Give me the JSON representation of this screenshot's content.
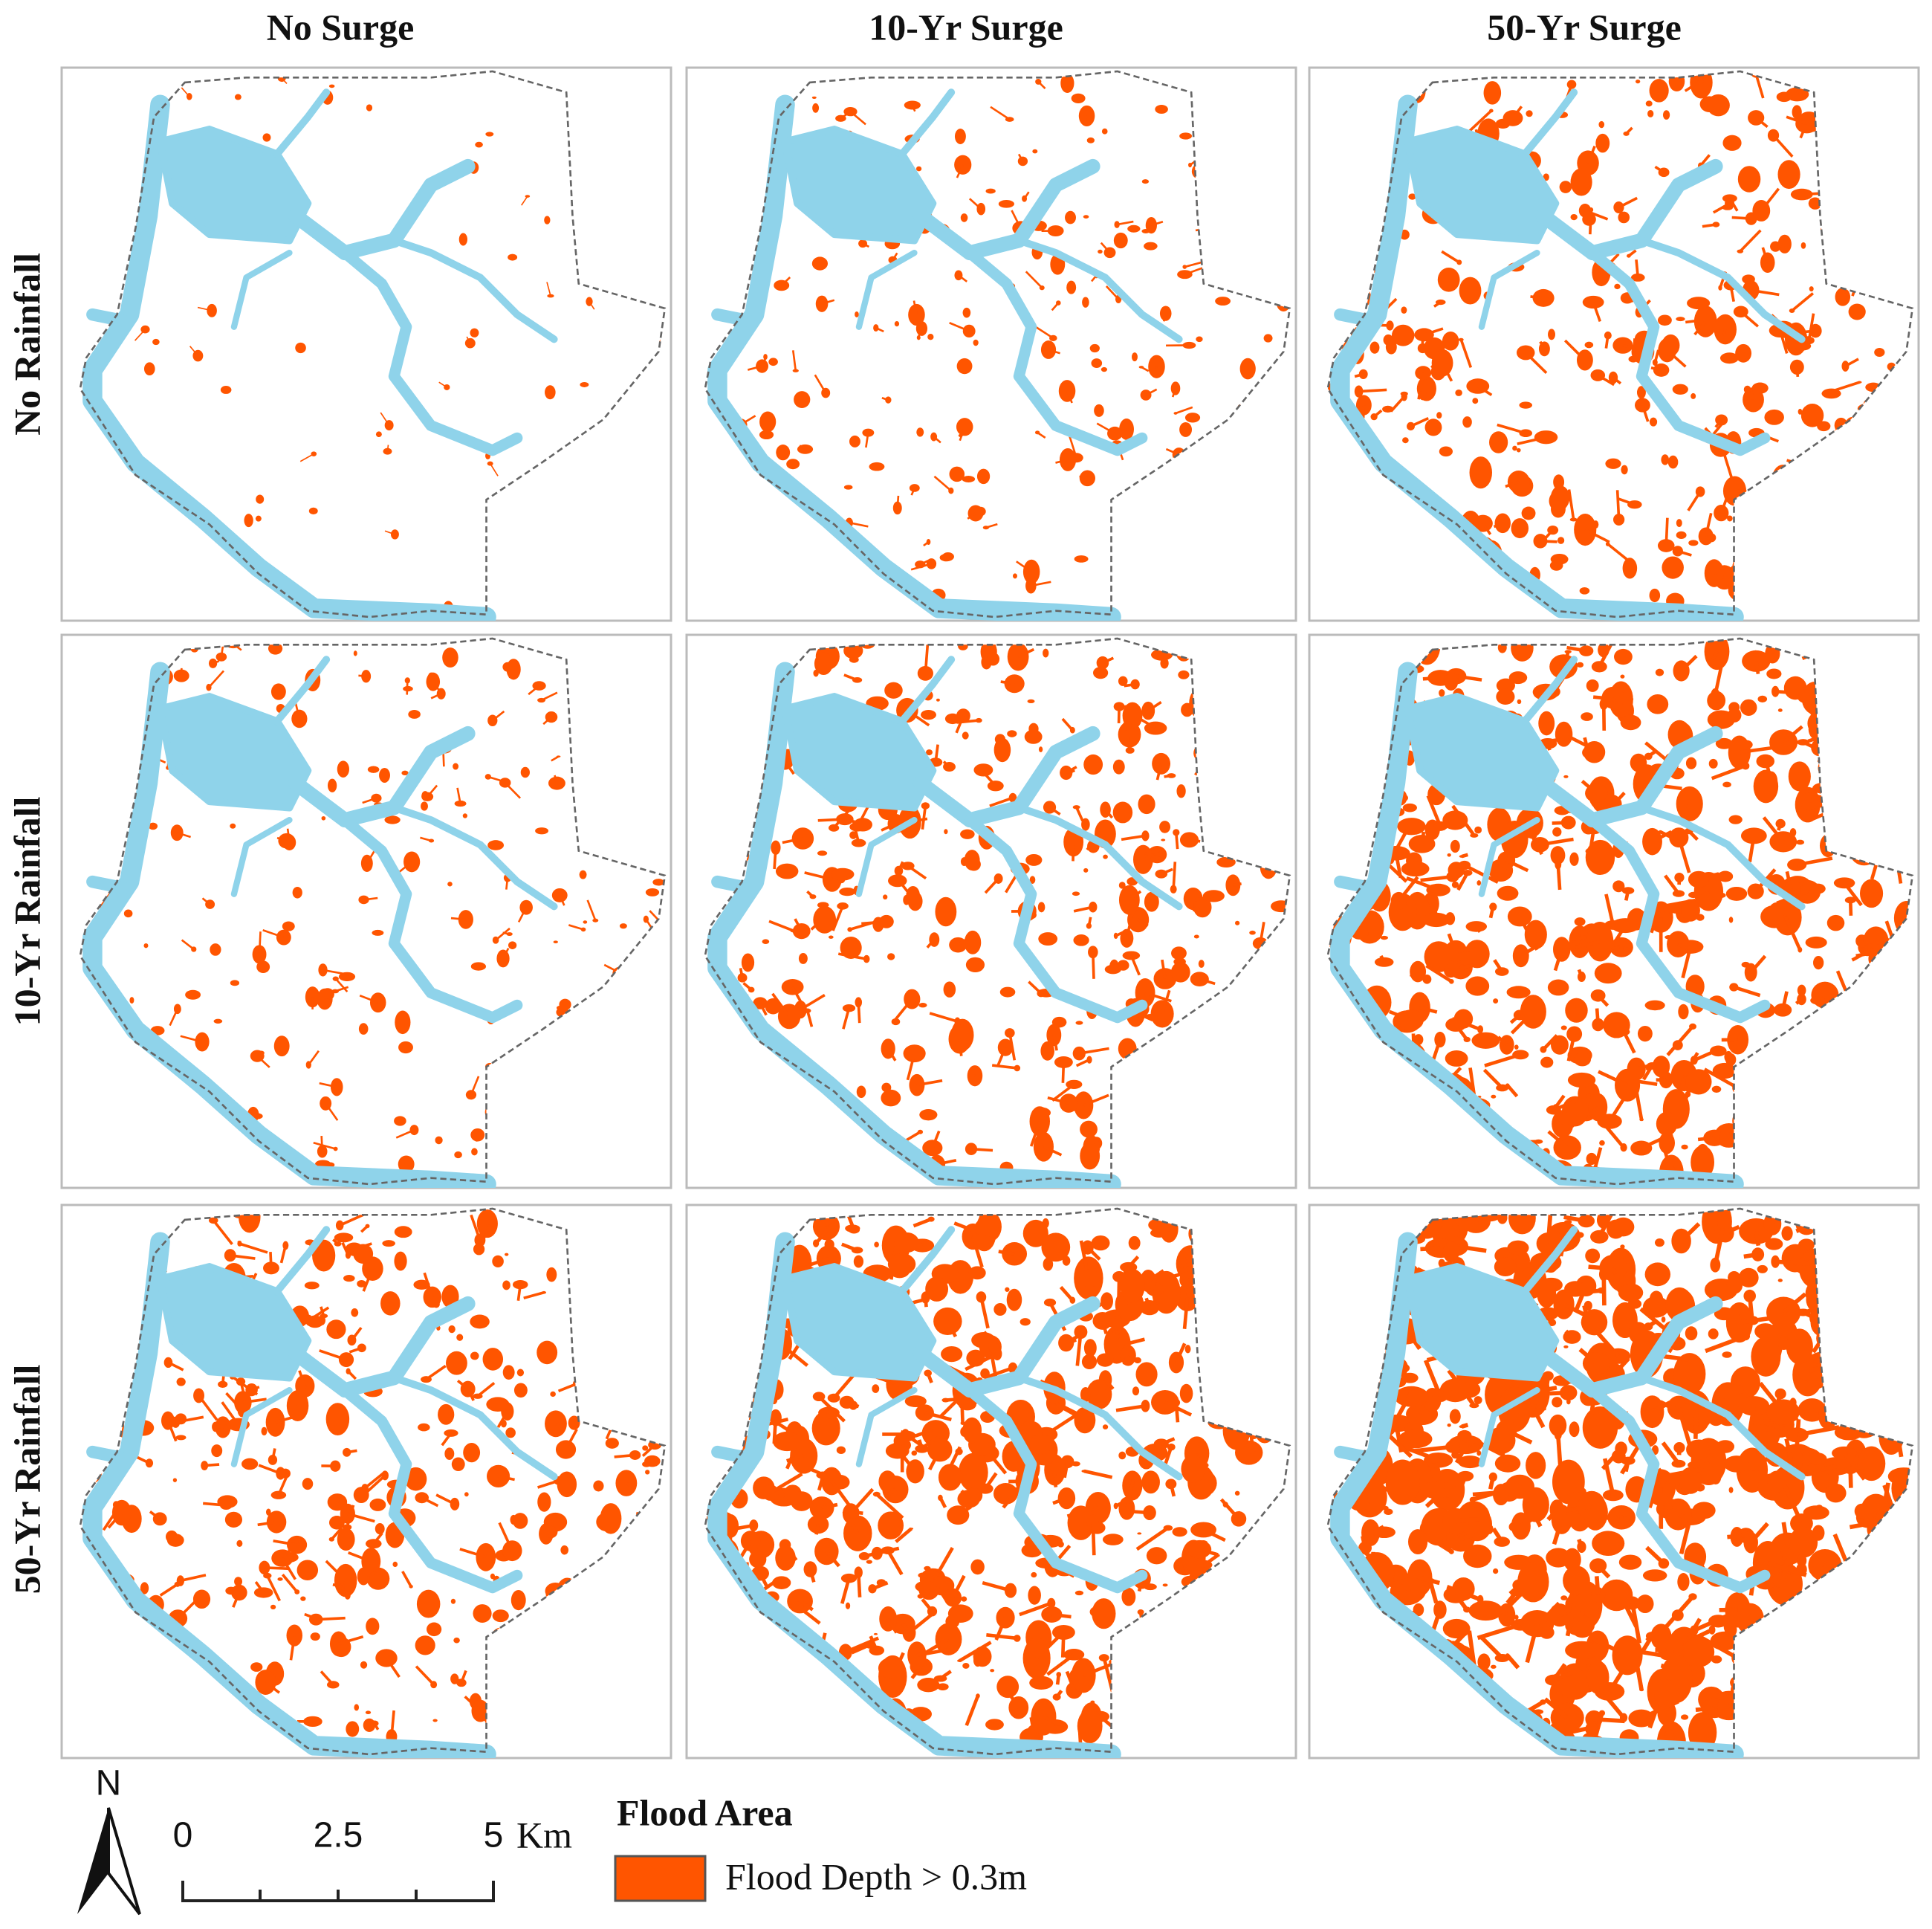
{
  "column_headers": [
    "No Surge",
    "10-Yr Surge",
    "50-Yr Surge"
  ],
  "row_headers": [
    "No Rainfall",
    "10-Yr Rainfall",
    "50-Yr Rainfall"
  ],
  "north_arrow": {
    "label": "N"
  },
  "scale_bar": {
    "labels": [
      "0",
      "2.5",
      "5"
    ],
    "unit": "Km"
  },
  "legend": {
    "title": "Flood Area",
    "items": [
      {
        "label": "Flood Depth > 0.3m",
        "color": "#ff5500"
      }
    ]
  }
}
